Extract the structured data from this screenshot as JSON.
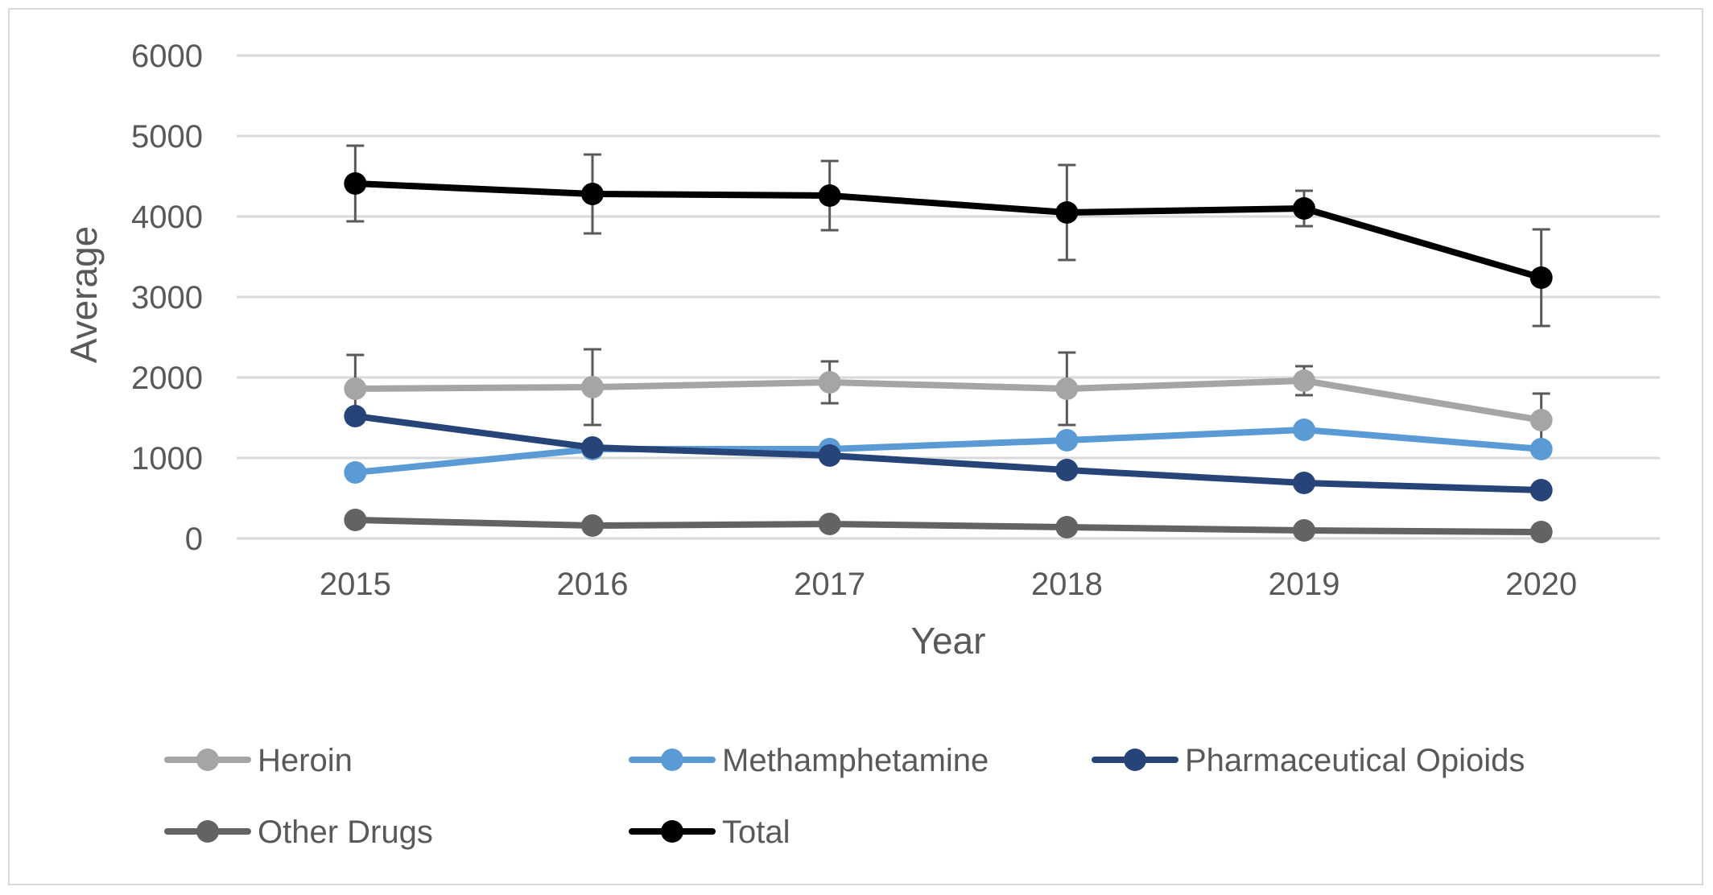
{
  "chart_data": {
    "type": "line",
    "title": "",
    "xlabel": "Year",
    "ylabel": "Average",
    "x": [
      "2015",
      "2016",
      "2017",
      "2018",
      "2019",
      "2020"
    ],
    "ylim": [
      0,
      6000
    ],
    "yticks": [
      0,
      1000,
      2000,
      3000,
      4000,
      5000,
      6000
    ],
    "grid": "horizontal",
    "legend_position": "bottom",
    "series": [
      {
        "name": "Heroin",
        "color": "#a5a5a5",
        "values": [
          1860,
          1880,
          1940,
          1860,
          1960,
          1470
        ],
        "error": [
          420,
          470,
          260,
          450,
          180,
          330
        ]
      },
      {
        "name": "Methamphetamine",
        "color": "#5b9bd5",
        "values": [
          820,
          1110,
          1110,
          1220,
          1350,
          1110
        ],
        "error": [
          0,
          0,
          0,
          0,
          0,
          0
        ]
      },
      {
        "name": "Pharmaceutical Opioids",
        "color": "#264478",
        "values": [
          1520,
          1130,
          1030,
          850,
          690,
          600
        ],
        "error": [
          0,
          0,
          0,
          0,
          0,
          0
        ]
      },
      {
        "name": "Other Drugs",
        "color": "#636363",
        "values": [
          230,
          160,
          180,
          140,
          100,
          80
        ],
        "error": [
          0,
          0,
          0,
          0,
          0,
          0
        ]
      },
      {
        "name": "Total",
        "color": "#000000",
        "values": [
          4410,
          4280,
          4260,
          4050,
          4100,
          3240
        ],
        "error": [
          470,
          490,
          430,
          590,
          220,
          600
        ]
      }
    ]
  }
}
